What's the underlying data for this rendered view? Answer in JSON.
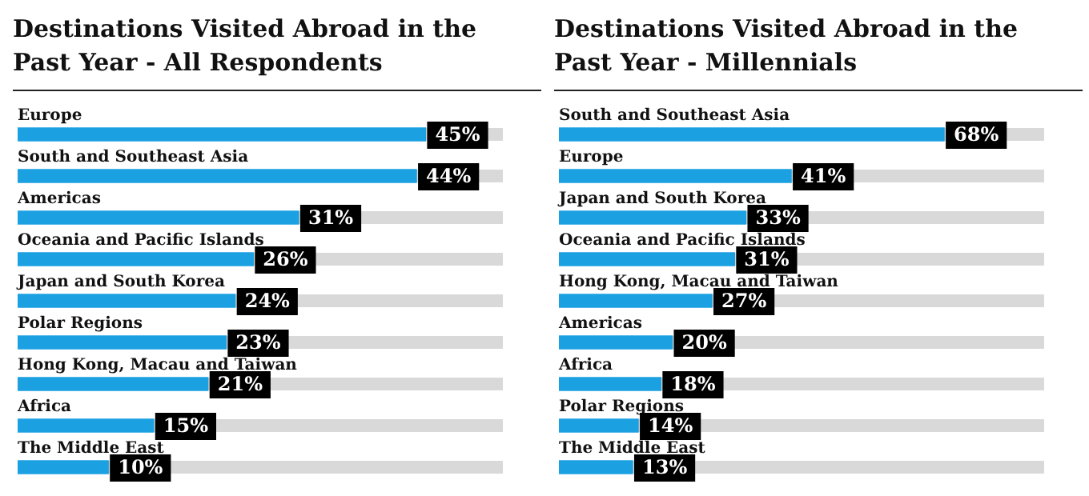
{
  "chart_data": [
    {
      "type": "bar",
      "orientation": "horizontal",
      "title": "Destinations Visited Abroad in the Past Year - All Respondents",
      "categories": [
        "Europe",
        "South and Southeast Asia",
        "Americas",
        "Oceania and Pacific Islands",
        "Japan and South Korea",
        "Polar Regions",
        "Hong Kong, Macau and Taiwan",
        "Africa",
        "The Middle East"
      ],
      "values": [
        45,
        44,
        31,
        26,
        24,
        23,
        21,
        15,
        10
      ],
      "value_labels": [
        "45%",
        "44%",
        "31%",
        "26%",
        "24%",
        "23%",
        "21%",
        "15%",
        "10%"
      ],
      "color": "#1ba1e2"
    },
    {
      "type": "bar",
      "orientation": "horizontal",
      "title": "Destinations Visited Abroad in the Past Year - Millennials",
      "categories": [
        "South and Southeast Asia",
        "Europe",
        "Japan and South Korea",
        "Oceania and Pacific Islands",
        "Hong Kong, Macau and Taiwan",
        "Americas",
        "Africa",
        "Polar Regions",
        "The Middle East"
      ],
      "values": [
        68,
        41,
        33,
        31,
        27,
        20,
        18,
        14,
        13
      ],
      "value_labels": [
        "68%",
        "41%",
        "33%",
        "31%",
        "27%",
        "20%",
        "18%",
        "14%",
        "13%"
      ],
      "color": "#1ba1e2"
    }
  ]
}
